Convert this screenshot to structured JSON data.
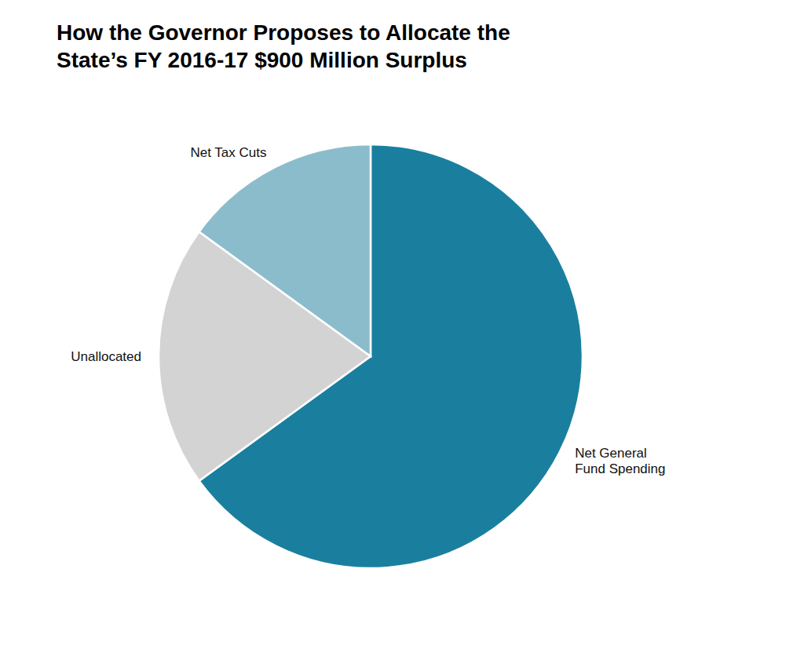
{
  "chart_data": {
    "type": "pie",
    "title": "How the Governor Proposes to Allocate the\nState’s FY 2016-17 $900 Million Surplus",
    "categories": [
      "Net General\nFund Spending",
      "Unallocated",
      "Net Tax Cuts"
    ],
    "values": [
      65,
      20,
      15
    ],
    "colors": [
      "#1a7f9e",
      "#d3d3d3",
      "#8bbccc"
    ]
  }
}
